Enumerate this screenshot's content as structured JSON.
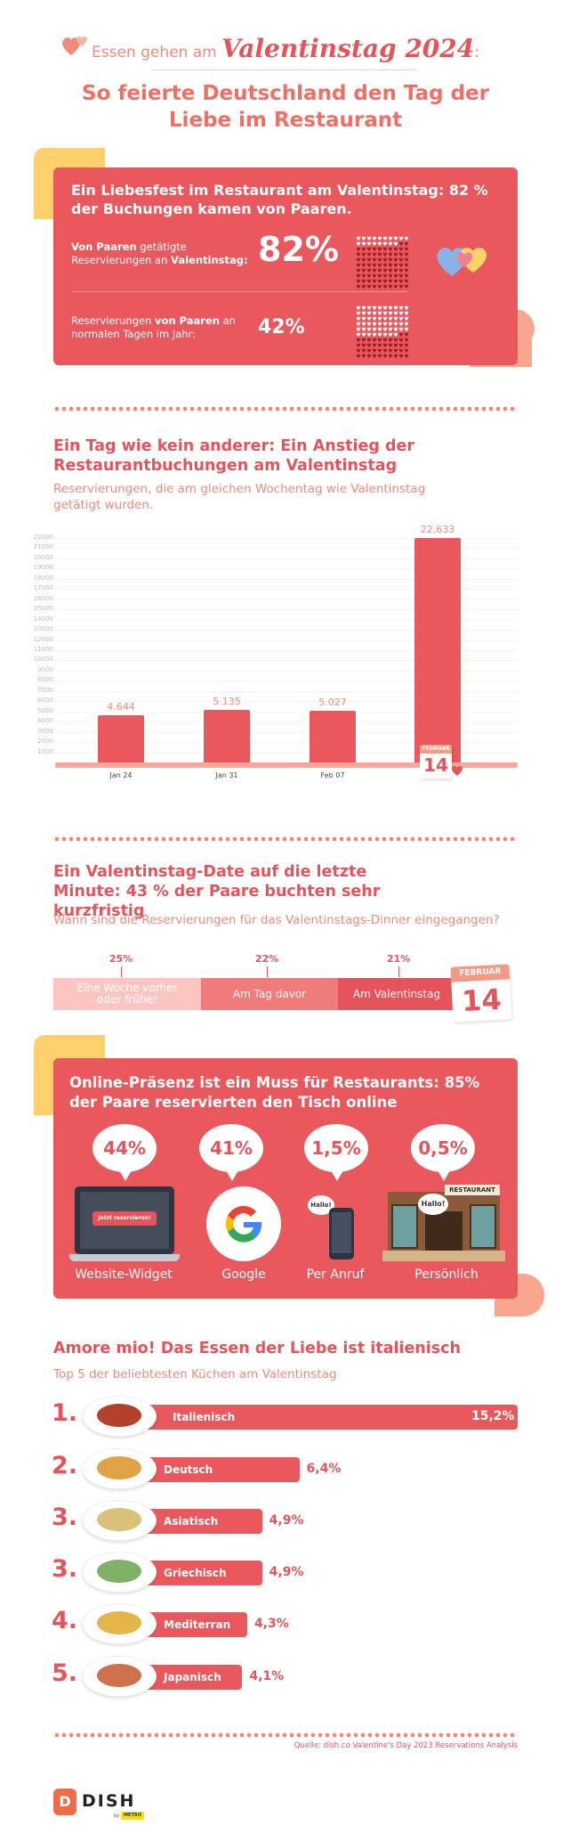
{
  "header": {
    "line1_prefix": "Essen gehen am",
    "line1_script": "Valentinstag 2024",
    "line1_suffix": ":",
    "title": "So feierte Deutschland den Tag der Liebe im Restaurant"
  },
  "section1": {
    "title": "Ein Liebesfest im Restaurant am Valentinstag: 82 % der Buchungen kamen von Paaren.",
    "row1": {
      "label_bold": "Von Paaren",
      "label_mid": " getätigte Reservierungen an ",
      "label_bold2": "Valentinstag:",
      "value": "82%"
    },
    "row2": {
      "label_pre": "Reservierungen ",
      "label_bold": "von Paaren",
      "label_post": " an normalen Tagen im Jahr:",
      "value": "42%"
    }
  },
  "section2": {
    "title": "Ein Tag wie kein anderer: Ein Anstieg der Restaurantbuchungen am Valentinstag",
    "subtitle": "Reservierungen, die am gleichen Wochentag wie Valentinstag getätigt wurden.",
    "calendar": {
      "month": "FEBRUAR",
      "day": "14"
    }
  },
  "chart_data": {
    "type": "bar",
    "categories": [
      "Jan 24",
      "Jan 31",
      "Feb 07",
      "Feb 14"
    ],
    "values": [
      4644,
      5135,
      5027,
      22633
    ],
    "value_labels": [
      "4.644",
      "5.135",
      "5.027",
      "22.633"
    ],
    "ylim": [
      0,
      22000
    ],
    "yticks": [
      "1000",
      "2000",
      "3000",
      "4000",
      "5000",
      "6000",
      "7000",
      "8000",
      "9000",
      "10000",
      "11000",
      "12000",
      "13000",
      "14000",
      "15000",
      "16000",
      "17000",
      "18000",
      "19000",
      "20000",
      "21000",
      "22000"
    ],
    "grid": true
  },
  "section3": {
    "title": "Ein Valentinstag-Date auf die letzte Minute: 43 % der Paare buchten sehr kurzfristig",
    "subtitle": "Wann sind die Reservierungen für das Valentinstags-Dinner eingegangen?",
    "segments": [
      {
        "label": "Eine Woche vorher oder früher",
        "pct": "25%",
        "color": "#fbc6c2"
      },
      {
        "label": "Am Tag davor",
        "pct": "22%",
        "color": "#f07b7b"
      },
      {
        "label": "Am Valentinstag",
        "pct": "21%",
        "color": "#e4545a"
      }
    ],
    "calendar": {
      "month": "FEBRUAR",
      "day": "14"
    }
  },
  "section4": {
    "title": "Online-Präsenz ist ein Muss für Restaurants: 85% der Paare reservierten den Tisch online",
    "channels": [
      {
        "pct": "44%",
        "label": "Website-Widget",
        "button": "Jetzt reservieren!"
      },
      {
        "pct": "41%",
        "label": "Google"
      },
      {
        "pct": "1,5%",
        "label": "Per Anruf",
        "speech": "Hallo!"
      },
      {
        "pct": "0,5%",
        "label": "Persönlich",
        "speech": "Hallo!",
        "sign": "RESTAURANT"
      }
    ]
  },
  "section5": {
    "title": "Amore mio! Das Essen der Liebe ist italienisch",
    "subtitle": "Top 5 der beliebtesten Küchen am Valentinstag",
    "cuisines": [
      {
        "rank": "1.",
        "name": "Italienisch",
        "value": "15,2%",
        "pct": 15.2
      },
      {
        "rank": "2.",
        "name": "Deutsch",
        "value": "6,4%",
        "pct": 6.4
      },
      {
        "rank": "3.",
        "name": "Asiatisch",
        "value": "4,9%",
        "pct": 4.9
      },
      {
        "rank": "3.",
        "name": "Griechisch",
        "value": "4,9%",
        "pct": 4.9
      },
      {
        "rank": "4.",
        "name": "Mediterran",
        "value": "4,3%",
        "pct": 4.3
      },
      {
        "rank": "5.",
        "name": "Japanisch",
        "value": "4,1%",
        "pct": 4.1
      }
    ]
  },
  "footer": {
    "source": "Quelle: dish.co Valentine's Day 2023 Reservations Analysis",
    "logo_text": "DISH",
    "logo_sub": "by",
    "logo_metro": "METRO",
    "logo_letter": "D"
  },
  "colors": {
    "coral": "#e4545a",
    "light_coral": "#ef8a7a",
    "yellow": "#fdd06b",
    "peach": "#f8a68e"
  }
}
